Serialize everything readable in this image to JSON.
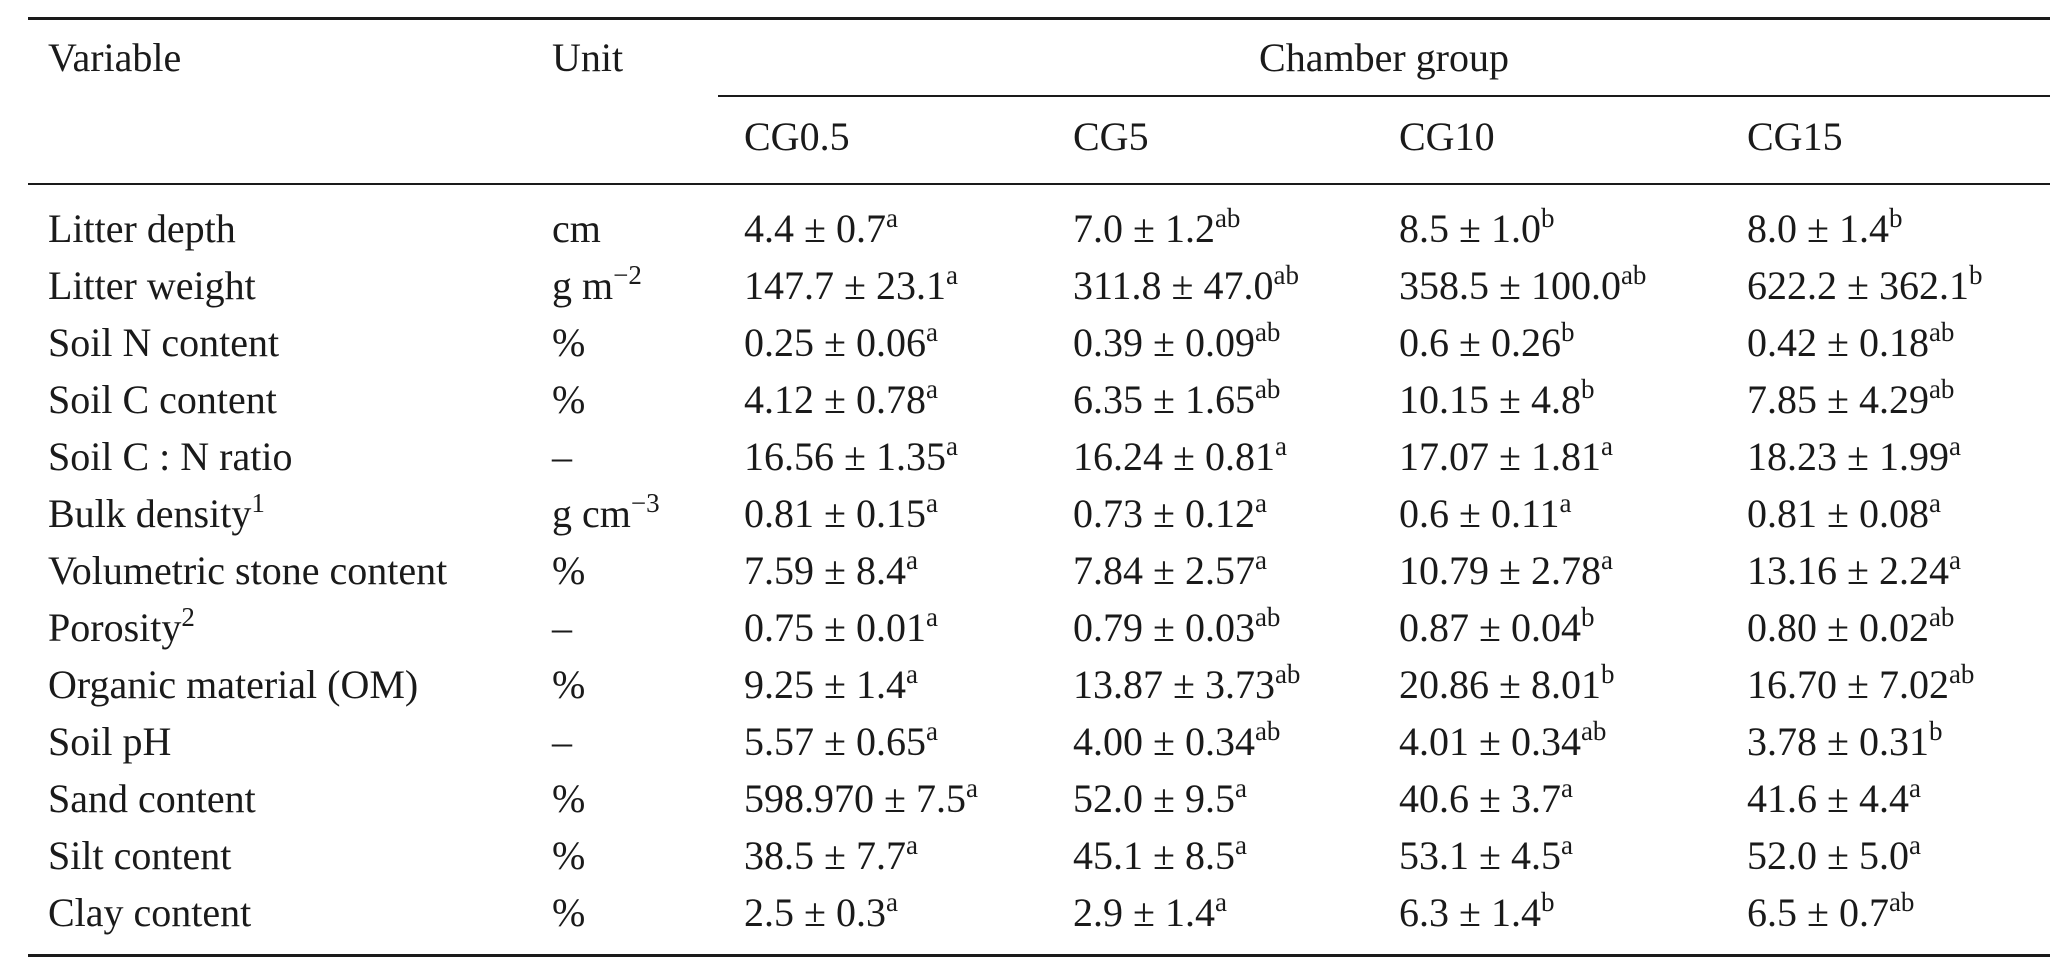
{
  "table": {
    "headers": {
      "variable": "Variable",
      "unit": "Unit",
      "group": "Chamber group",
      "groups": [
        "CG0.5",
        "CG5",
        "CG10",
        "CG15"
      ]
    },
    "rows": [
      {
        "variable": "Litter depth",
        "unit": "cm",
        "values": [
          {
            "v": "4.4 ± 0.7",
            "s": "a"
          },
          {
            "v": "7.0 ± 1.2",
            "s": "ab"
          },
          {
            "v": "8.5 ± 1.0",
            "s": "b"
          },
          {
            "v": "8.0 ± 1.4",
            "s": "b"
          }
        ]
      },
      {
        "variable": "Litter weight",
        "unit": "g m",
        "unit_sup": "−2",
        "values": [
          {
            "v": "147.7 ± 23.1",
            "s": "a"
          },
          {
            "v": "311.8 ± 47.0",
            "s": "ab"
          },
          {
            "v": "358.5 ± 100.0",
            "s": "ab"
          },
          {
            "v": "622.2 ± 362.1",
            "s": "b"
          }
        ]
      },
      {
        "variable": "Soil N content",
        "unit": "%",
        "values": [
          {
            "v": "0.25 ± 0.06",
            "s": "a"
          },
          {
            "v": "0.39 ± 0.09",
            "s": "ab"
          },
          {
            "v": "0.6 ± 0.26",
            "s": "b"
          },
          {
            "v": "0.42 ± 0.18",
            "s": "ab"
          }
        ]
      },
      {
        "variable": "Soil C content",
        "unit": "%",
        "values": [
          {
            "v": "4.12 ± 0.78",
            "s": "a"
          },
          {
            "v": "6.35 ± 1.65",
            "s": "ab"
          },
          {
            "v": "10.15 ± 4.8",
            "s": "b"
          },
          {
            "v": "7.85 ± 4.29",
            "s": "ab"
          }
        ]
      },
      {
        "variable": "Soil C : N ratio",
        "unit": "–",
        "values": [
          {
            "v": "16.56 ± 1.35",
            "s": "a"
          },
          {
            "v": "16.24 ± 0.81",
            "s": "a"
          },
          {
            "v": "17.07 ± 1.81",
            "s": "a"
          },
          {
            "v": "18.23 ± 1.99",
            "s": "a"
          }
        ]
      },
      {
        "variable": "Bulk density",
        "variable_sup": "1",
        "unit": "g cm",
        "unit_sup": "−3",
        "values": [
          {
            "v": "0.81 ± 0.15",
            "s": "a"
          },
          {
            "v": "0.73 ± 0.12",
            "s": "a"
          },
          {
            "v": "0.6 ± 0.11",
            "s": "a"
          },
          {
            "v": "0.81 ± 0.08",
            "s": "a"
          }
        ]
      },
      {
        "variable": "Volumetric stone content",
        "unit": "%",
        "values": [
          {
            "v": "7.59 ± 8.4",
            "s": "a"
          },
          {
            "v": "7.84 ± 2.57",
            "s": "a"
          },
          {
            "v": "10.79 ± 2.78",
            "s": "a"
          },
          {
            "v": "13.16 ± 2.24",
            "s": "a"
          }
        ]
      },
      {
        "variable": "Porosity",
        "variable_sup": "2",
        "unit": "–",
        "values": [
          {
            "v": "0.75 ± 0.01",
            "s": "a"
          },
          {
            "v": "0.79 ± 0.03",
            "s": "ab"
          },
          {
            "v": "0.87 ± 0.04",
            "s": "b"
          },
          {
            "v": "0.80 ± 0.02",
            "s": "ab"
          }
        ]
      },
      {
        "variable": "Organic material (OM)",
        "unit": "%",
        "values": [
          {
            "v": "9.25 ± 1.4",
            "s": "a"
          },
          {
            "v": "13.87 ± 3.73",
            "s": "ab"
          },
          {
            "v": "20.86 ± 8.01",
            "s": "b"
          },
          {
            "v": "16.70 ± 7.02",
            "s": "ab"
          }
        ]
      },
      {
        "variable": "Soil pH",
        "unit": "–",
        "values": [
          {
            "v": "5.57 ± 0.65",
            "s": "a"
          },
          {
            "v": "4.00 ± 0.34",
            "s": "ab"
          },
          {
            "v": "4.01 ± 0.34",
            "s": "ab"
          },
          {
            "v": "3.78 ± 0.31",
            "s": "b"
          }
        ]
      },
      {
        "variable": "Sand content",
        "unit": "%",
        "values": [
          {
            "v": "598.970 ± 7.5",
            "s": "a"
          },
          {
            "v": "52.0 ± 9.5",
            "s": "a"
          },
          {
            "v": "40.6 ± 3.7",
            "s": "a"
          },
          {
            "v": "41.6 ± 4.4",
            "s": "a"
          }
        ]
      },
      {
        "variable": "Silt content",
        "unit": "%",
        "values": [
          {
            "v": "38.5 ± 7.7",
            "s": "a"
          },
          {
            "v": "45.1 ± 8.5",
            "s": "a"
          },
          {
            "v": "53.1 ± 4.5",
            "s": "a"
          },
          {
            "v": "52.0 ± 5.0",
            "s": "a"
          }
        ]
      },
      {
        "variable": "Clay content",
        "unit": "%",
        "values": [
          {
            "v": "2.5 ± 0.3",
            "s": "a"
          },
          {
            "v": "2.9 ± 1.4",
            "s": "a"
          },
          {
            "v": "6.3 ± 1.4",
            "s": "b"
          },
          {
            "v": "6.5 ± 0.7",
            "s": "ab"
          }
        ]
      }
    ]
  }
}
